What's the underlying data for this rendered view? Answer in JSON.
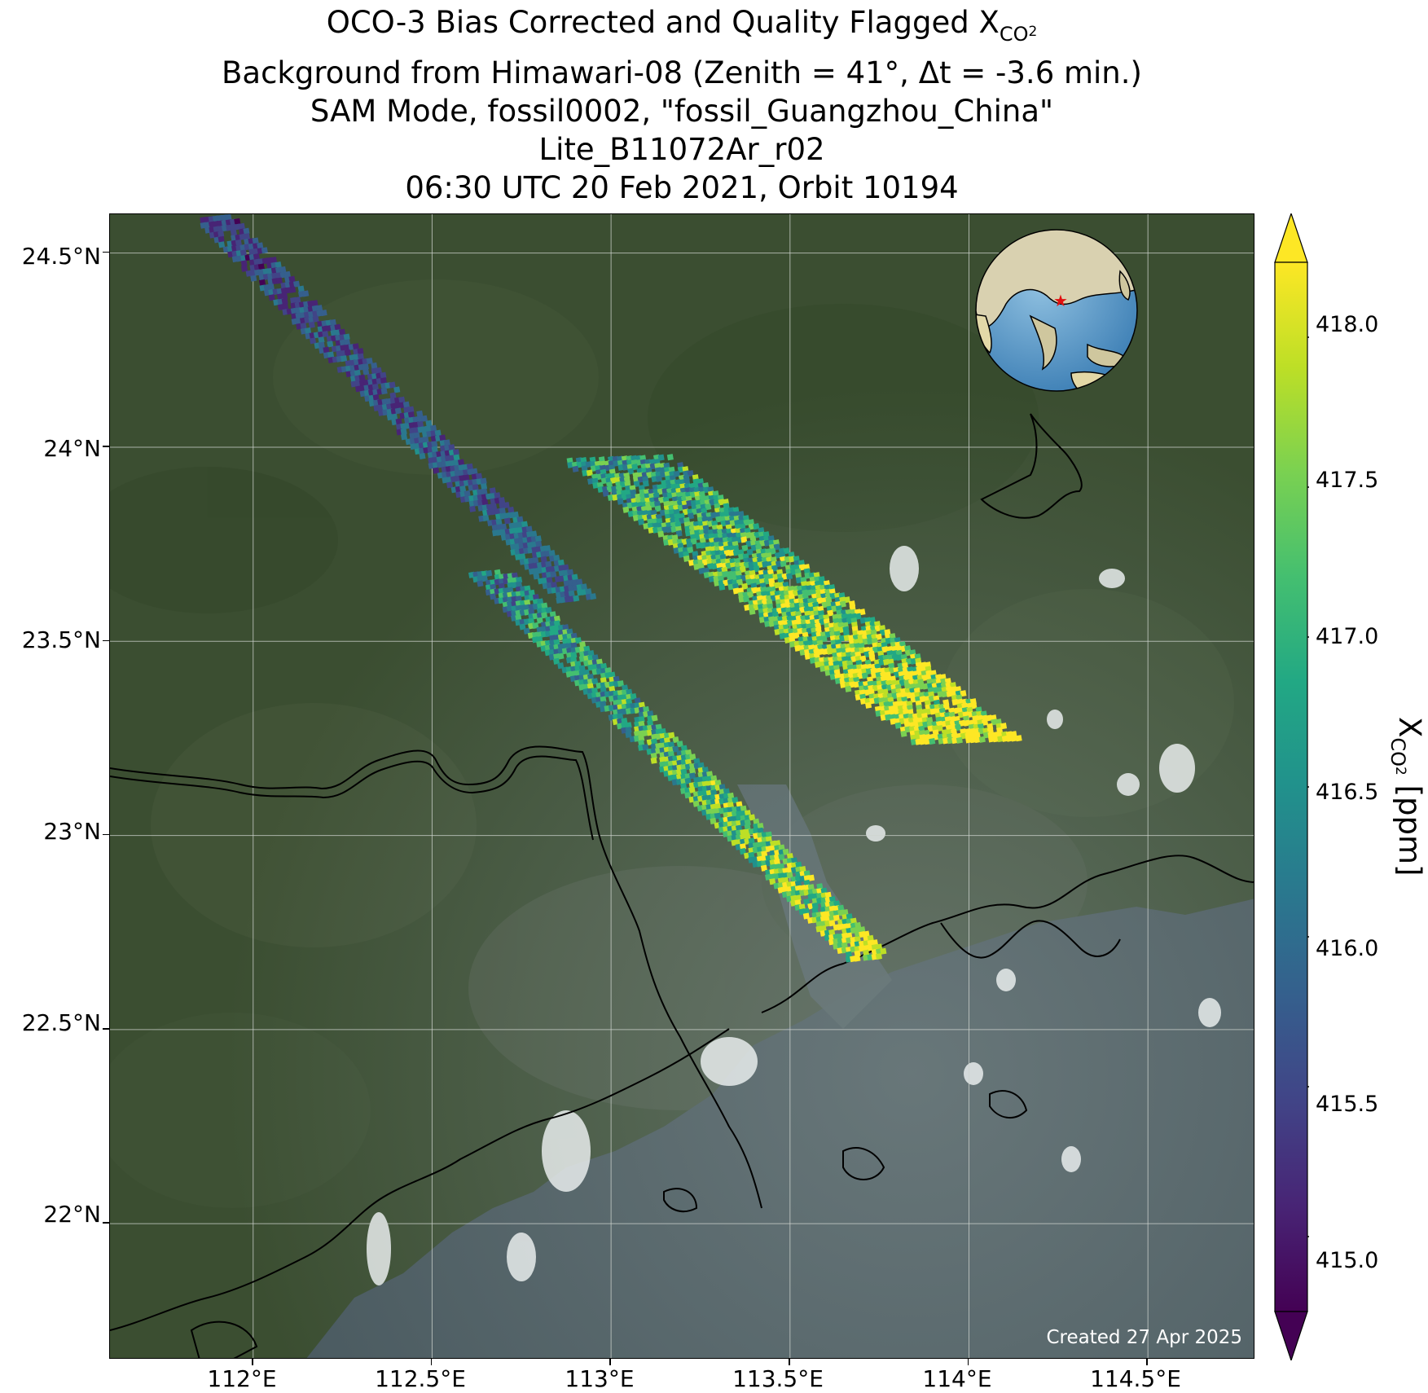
{
  "title": {
    "line1_prefix": "OCO-3 Bias Corrected and Quality Flagged X",
    "line1_sub": "CO",
    "line1_subsub": "2",
    "line2": "Background from Himawari-08 (Zenith = 41°, Δt = -3.6 min.)",
    "line3": "SAM Mode, fossil0002, \"fossil_Guangzhou_China\"",
    "line4": "Lite_B11072Ar_r02",
    "line5": "06:30 UTC 20 Feb 2021, Orbit 10194"
  },
  "map": {
    "lon_range": [
      111.6,
      114.8
    ],
    "lat_range": [
      21.65,
      24.6
    ],
    "lon_ticks": [
      "112°E",
      "112.5°E",
      "113°E",
      "113.5°E",
      "114°E",
      "114.5°E"
    ],
    "lon_tick_values": [
      112.0,
      112.5,
      113.0,
      113.5,
      114.0,
      114.5
    ],
    "lat_ticks": [
      "24.5°N",
      "24°N",
      "23.5°N",
      "23°N",
      "22.5°N",
      "22°N"
    ],
    "lat_tick_values": [
      24.5,
      24.0,
      23.5,
      23.0,
      22.5,
      22.0
    ],
    "credit": "Created 27 Apr 2025",
    "target_marker": "red-star",
    "inset": "globe-locator"
  },
  "colorbar": {
    "colormap": "viridis",
    "range": [
      414.75,
      418.25
    ],
    "ticks": [
      "418.0",
      "417.5",
      "417.0",
      "416.5",
      "416.0",
      "415.5",
      "415.0"
    ],
    "tick_values": [
      418.0,
      417.5,
      417.0,
      416.5,
      416.0,
      415.5,
      415.0
    ],
    "extend": "both",
    "label_prefix": "X",
    "label_sub": "CO",
    "label_subsub": "2",
    "label_suffix": " [ppm]"
  },
  "colors": {
    "land": "#3b4e31",
    "water": "#4a5a60",
    "grid": "#cfd4cf",
    "coast": "#000000"
  }
}
